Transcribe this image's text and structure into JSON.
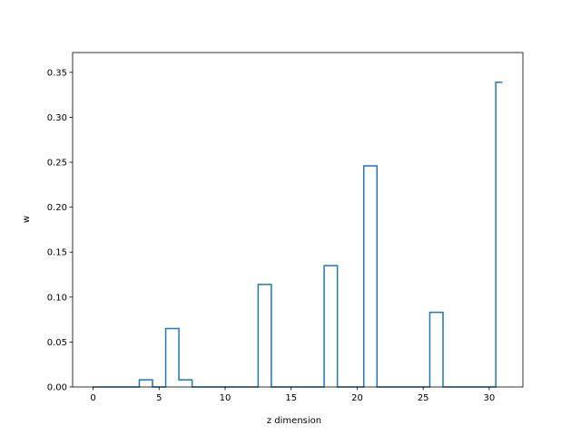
{
  "chart_data": {
    "type": "line",
    "drawstyle": "steps-mid",
    "xlabel": "z dimension",
    "ylabel": "w",
    "xlim": [
      -1.55,
      32.55
    ],
    "ylim": [
      0,
      0.372
    ],
    "xticks": [
      0,
      5,
      10,
      15,
      20,
      25,
      30
    ],
    "yticks": [
      0.0,
      0.05,
      0.1,
      0.15,
      0.2,
      0.25,
      0.3,
      0.35
    ],
    "ytick_labels": [
      "0.00",
      "0.05",
      "0.10",
      "0.15",
      "0.20",
      "0.25",
      "0.30",
      "0.35"
    ],
    "grid": false,
    "line_color": "#1f77b4",
    "series": [
      {
        "x": [
          0,
          1,
          2,
          3,
          4,
          5,
          6,
          7,
          8,
          9,
          10,
          11,
          12,
          13,
          14,
          15,
          16,
          17,
          18,
          19,
          20,
          21,
          22,
          23,
          24,
          25,
          26,
          27,
          28,
          29,
          30,
          31
        ],
        "values": [
          0,
          0,
          0,
          0,
          0.008,
          0,
          0.065,
          0.008,
          0,
          0,
          0,
          0,
          0,
          0.114,
          0,
          0,
          0,
          0,
          0.135,
          0,
          0,
          0.246,
          0,
          0,
          0,
          0,
          0.083,
          0,
          0,
          0,
          0,
          0.339
        ]
      }
    ]
  }
}
